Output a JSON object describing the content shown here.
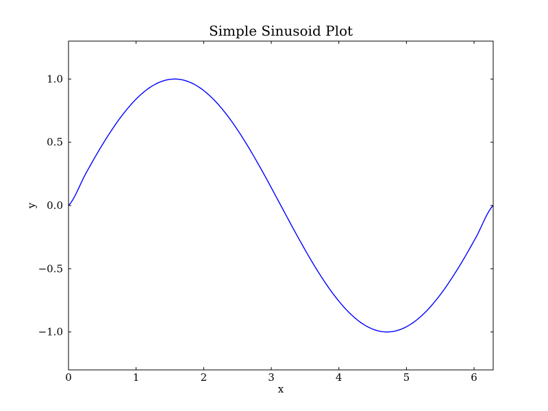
{
  "chart_data": {
    "type": "line",
    "title": "Simple Sinusoid Plot",
    "xlabel": "x",
    "ylabel": "y",
    "xlim": [
      0,
      6.283185307179586
    ],
    "ylim": [
      -1.3,
      1.3
    ],
    "grid": false,
    "legend": "none",
    "xticks": [
      {
        "value": 0,
        "label": "0"
      },
      {
        "value": 1,
        "label": "1"
      },
      {
        "value": 2,
        "label": "2"
      },
      {
        "value": 3,
        "label": "3"
      },
      {
        "value": 4,
        "label": "4"
      },
      {
        "value": 5,
        "label": "5"
      },
      {
        "value": 6,
        "label": "6"
      }
    ],
    "yticks": [
      {
        "value": -1.0,
        "label": "−1.0"
      },
      {
        "value": -0.5,
        "label": "−0.5"
      },
      {
        "value": 0.0,
        "label": "0.0"
      },
      {
        "value": 0.5,
        "label": "0.5"
      },
      {
        "value": 1.0,
        "label": "1.0"
      }
    ],
    "series": [
      {
        "color": "#0000ff",
        "x": [
          0,
          0.2618,
          0.5236,
          0.7854,
          1.0472,
          1.309,
          1.5708,
          1.8326,
          2.0944,
          2.3562,
          2.618,
          2.8798,
          3.1416,
          3.4034,
          3.6652,
          3.927,
          4.1888,
          4.4506,
          4.7124,
          4.9742,
          5.236,
          5.4978,
          5.7596,
          6.0214,
          6.2832
        ],
        "y": [
          0,
          0.2588,
          0.5,
          0.7071,
          0.866,
          0.9659,
          1.0,
          0.9659,
          0.866,
          0.7071,
          0.5,
          0.2588,
          0,
          -0.2588,
          -0.5,
          -0.7071,
          -0.866,
          -0.9659,
          -1.0,
          -0.9659,
          -0.866,
          -0.7071,
          -0.5,
          -0.2588,
          0
        ]
      }
    ]
  }
}
